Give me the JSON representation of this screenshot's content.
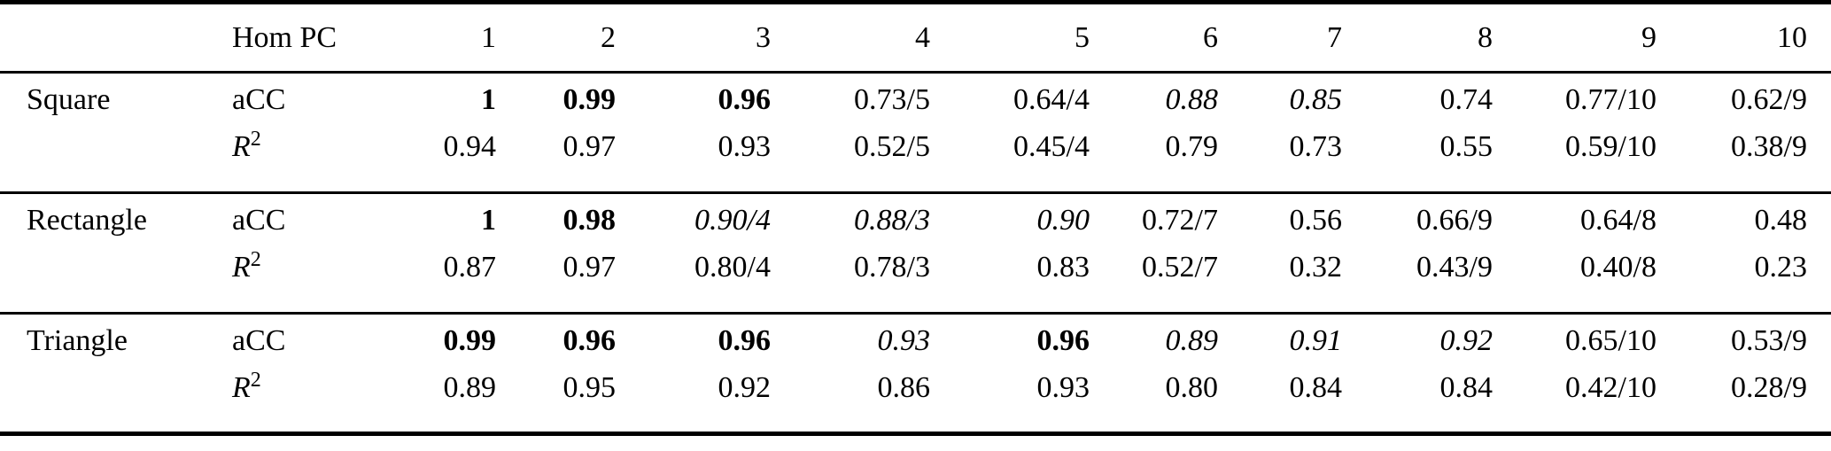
{
  "page": {
    "background_color": "#ffffff",
    "text_color": "#000000",
    "rule_color": "#000000"
  },
  "table": {
    "corner_label": "",
    "metric_header": "Hom PC",
    "pc_columns": [
      "1",
      "2",
      "3",
      "4",
      "5",
      "6",
      "7",
      "8",
      "9",
      "10"
    ],
    "metrics": {
      "acc_label": "aCC",
      "r2_base": "R",
      "r2_sup": "2"
    },
    "groups": [
      {
        "label": "Square",
        "acc": [
          {
            "t": "1",
            "s": "bold"
          },
          {
            "t": "0.99",
            "s": "bold"
          },
          {
            "t": "0.96",
            "s": "bold"
          },
          {
            "t": "0.73/5",
            "s": "normal"
          },
          {
            "t": "0.64/4",
            "s": "normal"
          },
          {
            "t": "0.88",
            "s": "italic"
          },
          {
            "t": "0.85",
            "s": "italic"
          },
          {
            "t": "0.74",
            "s": "normal"
          },
          {
            "t": "0.77/10",
            "s": "normal"
          },
          {
            "t": "0.62/9",
            "s": "normal"
          }
        ],
        "r2": [
          {
            "t": "0.94",
            "s": "normal"
          },
          {
            "t": "0.97",
            "s": "normal"
          },
          {
            "t": "0.93",
            "s": "normal"
          },
          {
            "t": "0.52/5",
            "s": "normal"
          },
          {
            "t": "0.45/4",
            "s": "normal"
          },
          {
            "t": "0.79",
            "s": "normal"
          },
          {
            "t": "0.73",
            "s": "normal"
          },
          {
            "t": "0.55",
            "s": "normal"
          },
          {
            "t": "0.59/10",
            "s": "normal"
          },
          {
            "t": "0.38/9",
            "s": "normal"
          }
        ]
      },
      {
        "label": "Rectangle",
        "acc": [
          {
            "t": "1",
            "s": "bold"
          },
          {
            "t": "0.98",
            "s": "bold"
          },
          {
            "t": "0.90/4",
            "s": "italic"
          },
          {
            "t": "0.88/3",
            "s": "italic"
          },
          {
            "t": "0.90",
            "s": "italic"
          },
          {
            "t": "0.72/7",
            "s": "normal"
          },
          {
            "t": "0.56",
            "s": "normal"
          },
          {
            "t": "0.66/9",
            "s": "normal"
          },
          {
            "t": "0.64/8",
            "s": "normal"
          },
          {
            "t": "0.48",
            "s": "normal"
          }
        ],
        "r2": [
          {
            "t": "0.87",
            "s": "normal"
          },
          {
            "t": "0.97",
            "s": "normal"
          },
          {
            "t": "0.80/4",
            "s": "normal"
          },
          {
            "t": "0.78/3",
            "s": "normal"
          },
          {
            "t": "0.83",
            "s": "normal"
          },
          {
            "t": "0.52/7",
            "s": "normal"
          },
          {
            "t": "0.32",
            "s": "normal"
          },
          {
            "t": "0.43/9",
            "s": "normal"
          },
          {
            "t": "0.40/8",
            "s": "normal"
          },
          {
            "t": "0.23",
            "s": "normal"
          }
        ]
      },
      {
        "label": "Triangle",
        "acc": [
          {
            "t": "0.99",
            "s": "bold"
          },
          {
            "t": "0.96",
            "s": "bold"
          },
          {
            "t": "0.96",
            "s": "bold"
          },
          {
            "t": "0.93",
            "s": "italic"
          },
          {
            "t": "0.96",
            "s": "bold"
          },
          {
            "t": "0.89",
            "s": "italic"
          },
          {
            "t": "0.91",
            "s": "italic"
          },
          {
            "t": "0.92",
            "s": "italic"
          },
          {
            "t": "0.65/10",
            "s": "normal"
          },
          {
            "t": "0.53/9",
            "s": "normal"
          }
        ],
        "r2": [
          {
            "t": "0.89",
            "s": "normal"
          },
          {
            "t": "0.95",
            "s": "normal"
          },
          {
            "t": "0.92",
            "s": "normal"
          },
          {
            "t": "0.86",
            "s": "normal"
          },
          {
            "t": "0.93",
            "s": "normal"
          },
          {
            "t": "0.80",
            "s": "normal"
          },
          {
            "t": "0.84",
            "s": "normal"
          },
          {
            "t": "0.84",
            "s": "normal"
          },
          {
            "t": "0.42/10",
            "s": "normal"
          },
          {
            "t": "0.28/9",
            "s": "normal"
          }
        ]
      }
    ]
  }
}
